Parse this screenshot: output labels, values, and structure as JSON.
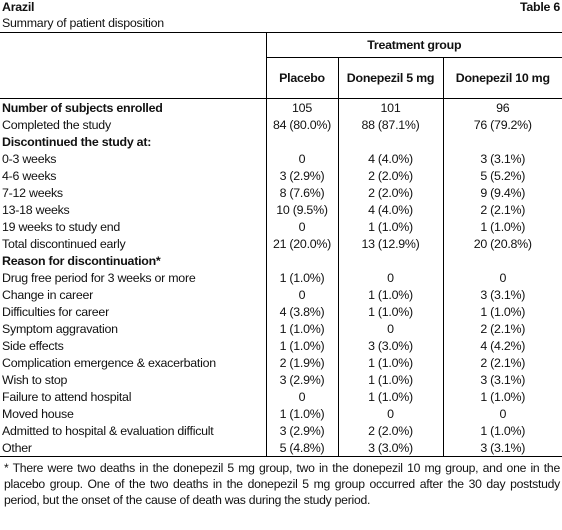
{
  "header": {
    "title": "Arazil",
    "table_label": "Table 6",
    "subtitle": "Summary of patient disposition"
  },
  "table": {
    "group_header": "Treatment group",
    "columns": [
      "Placebo",
      "Donepezil 5 mg",
      "Donepezil 10 mg"
    ],
    "rows": [
      {
        "label": "Number of subjects enrolled",
        "bold": true,
        "cells": [
          "105",
          "101",
          "96"
        ]
      },
      {
        "label": "Completed the study",
        "cells": [
          "84 (80.0%)",
          "88 (87.1%)",
          "76 (79.2%)"
        ]
      },
      {
        "label": "Discontinued the study at:",
        "bold": true
      },
      {
        "label": "0-3 weeks",
        "cells": [
          "0",
          "4 (4.0%)",
          "3 (3.1%)"
        ]
      },
      {
        "label": "4-6 weeks",
        "cells": [
          "3 (2.9%)",
          "2 (2.0%)",
          "5 (5.2%)"
        ]
      },
      {
        "label": "7-12 weeks",
        "cells": [
          "8 (7.6%)",
          "2 (2.0%)",
          "9 (9.4%)"
        ]
      },
      {
        "label": "13-18 weeks",
        "cells": [
          "10 (9.5%)",
          "4 (4.0%)",
          "2 (2.1%)"
        ]
      },
      {
        "label": "19 weeks to study end",
        "cells": [
          "0",
          "1 (1.0%)",
          "1 (1.0%)"
        ]
      },
      {
        "label": "Total discontinued early",
        "cells": [
          "21 (20.0%)",
          "13 (12.9%)",
          "20 (20.8%)"
        ]
      },
      {
        "label": "Reason for discontinuation*",
        "bold": true
      },
      {
        "label": "Drug free period for 3 weeks or more",
        "cells": [
          "1 (1.0%)",
          "0",
          "0"
        ]
      },
      {
        "label": "Change in career",
        "cells": [
          "0",
          "1 (1.0%)",
          "3 (3.1%)"
        ]
      },
      {
        "label": "Difficulties for career",
        "cells": [
          "4 (3.8%)",
          "1 (1.0%)",
          "1 (1.0%)"
        ]
      },
      {
        "label": "Symptom aggravation",
        "cells": [
          "1 (1.0%)",
          "0",
          "2 (2.1%)"
        ]
      },
      {
        "label": "Side effects",
        "cells": [
          "1 (1.0%)",
          "3 (3.0%)",
          "4 (4.2%)"
        ]
      },
      {
        "label": "Complication emergence & exacerbation",
        "cells": [
          "2 (1.9%)",
          "1 (1.0%)",
          "2 (2.1%)"
        ]
      },
      {
        "label": "Wish to stop",
        "cells": [
          "3 (2.9%)",
          "1 (1.0%)",
          "3 (3.1%)"
        ]
      },
      {
        "label": "Failure to attend hospital",
        "cells": [
          "0",
          "1 (1.0%)",
          "1 (1.0%)"
        ]
      },
      {
        "label": "Moved house",
        "cells": [
          "1 (1.0%)",
          "0",
          "0"
        ]
      },
      {
        "label": "Admitted to hospital & evaluation difficult",
        "cells": [
          "3 (2.9%)",
          "2 (2.0%)",
          "1 (1.0%)"
        ]
      },
      {
        "label": "Other",
        "cells": [
          "5 (4.8%)",
          "3 (3.0%)",
          "3 (3.1%)"
        ]
      }
    ]
  },
  "footnote": "* There were two deaths in the donepezil 5 mg group, two in the donepezil 10 mg group, and one in the placebo group. One of the two deaths in the donepezil 5 mg group occurred after the 30 day poststudy period, but the onset of the cause of death was during the study period."
}
